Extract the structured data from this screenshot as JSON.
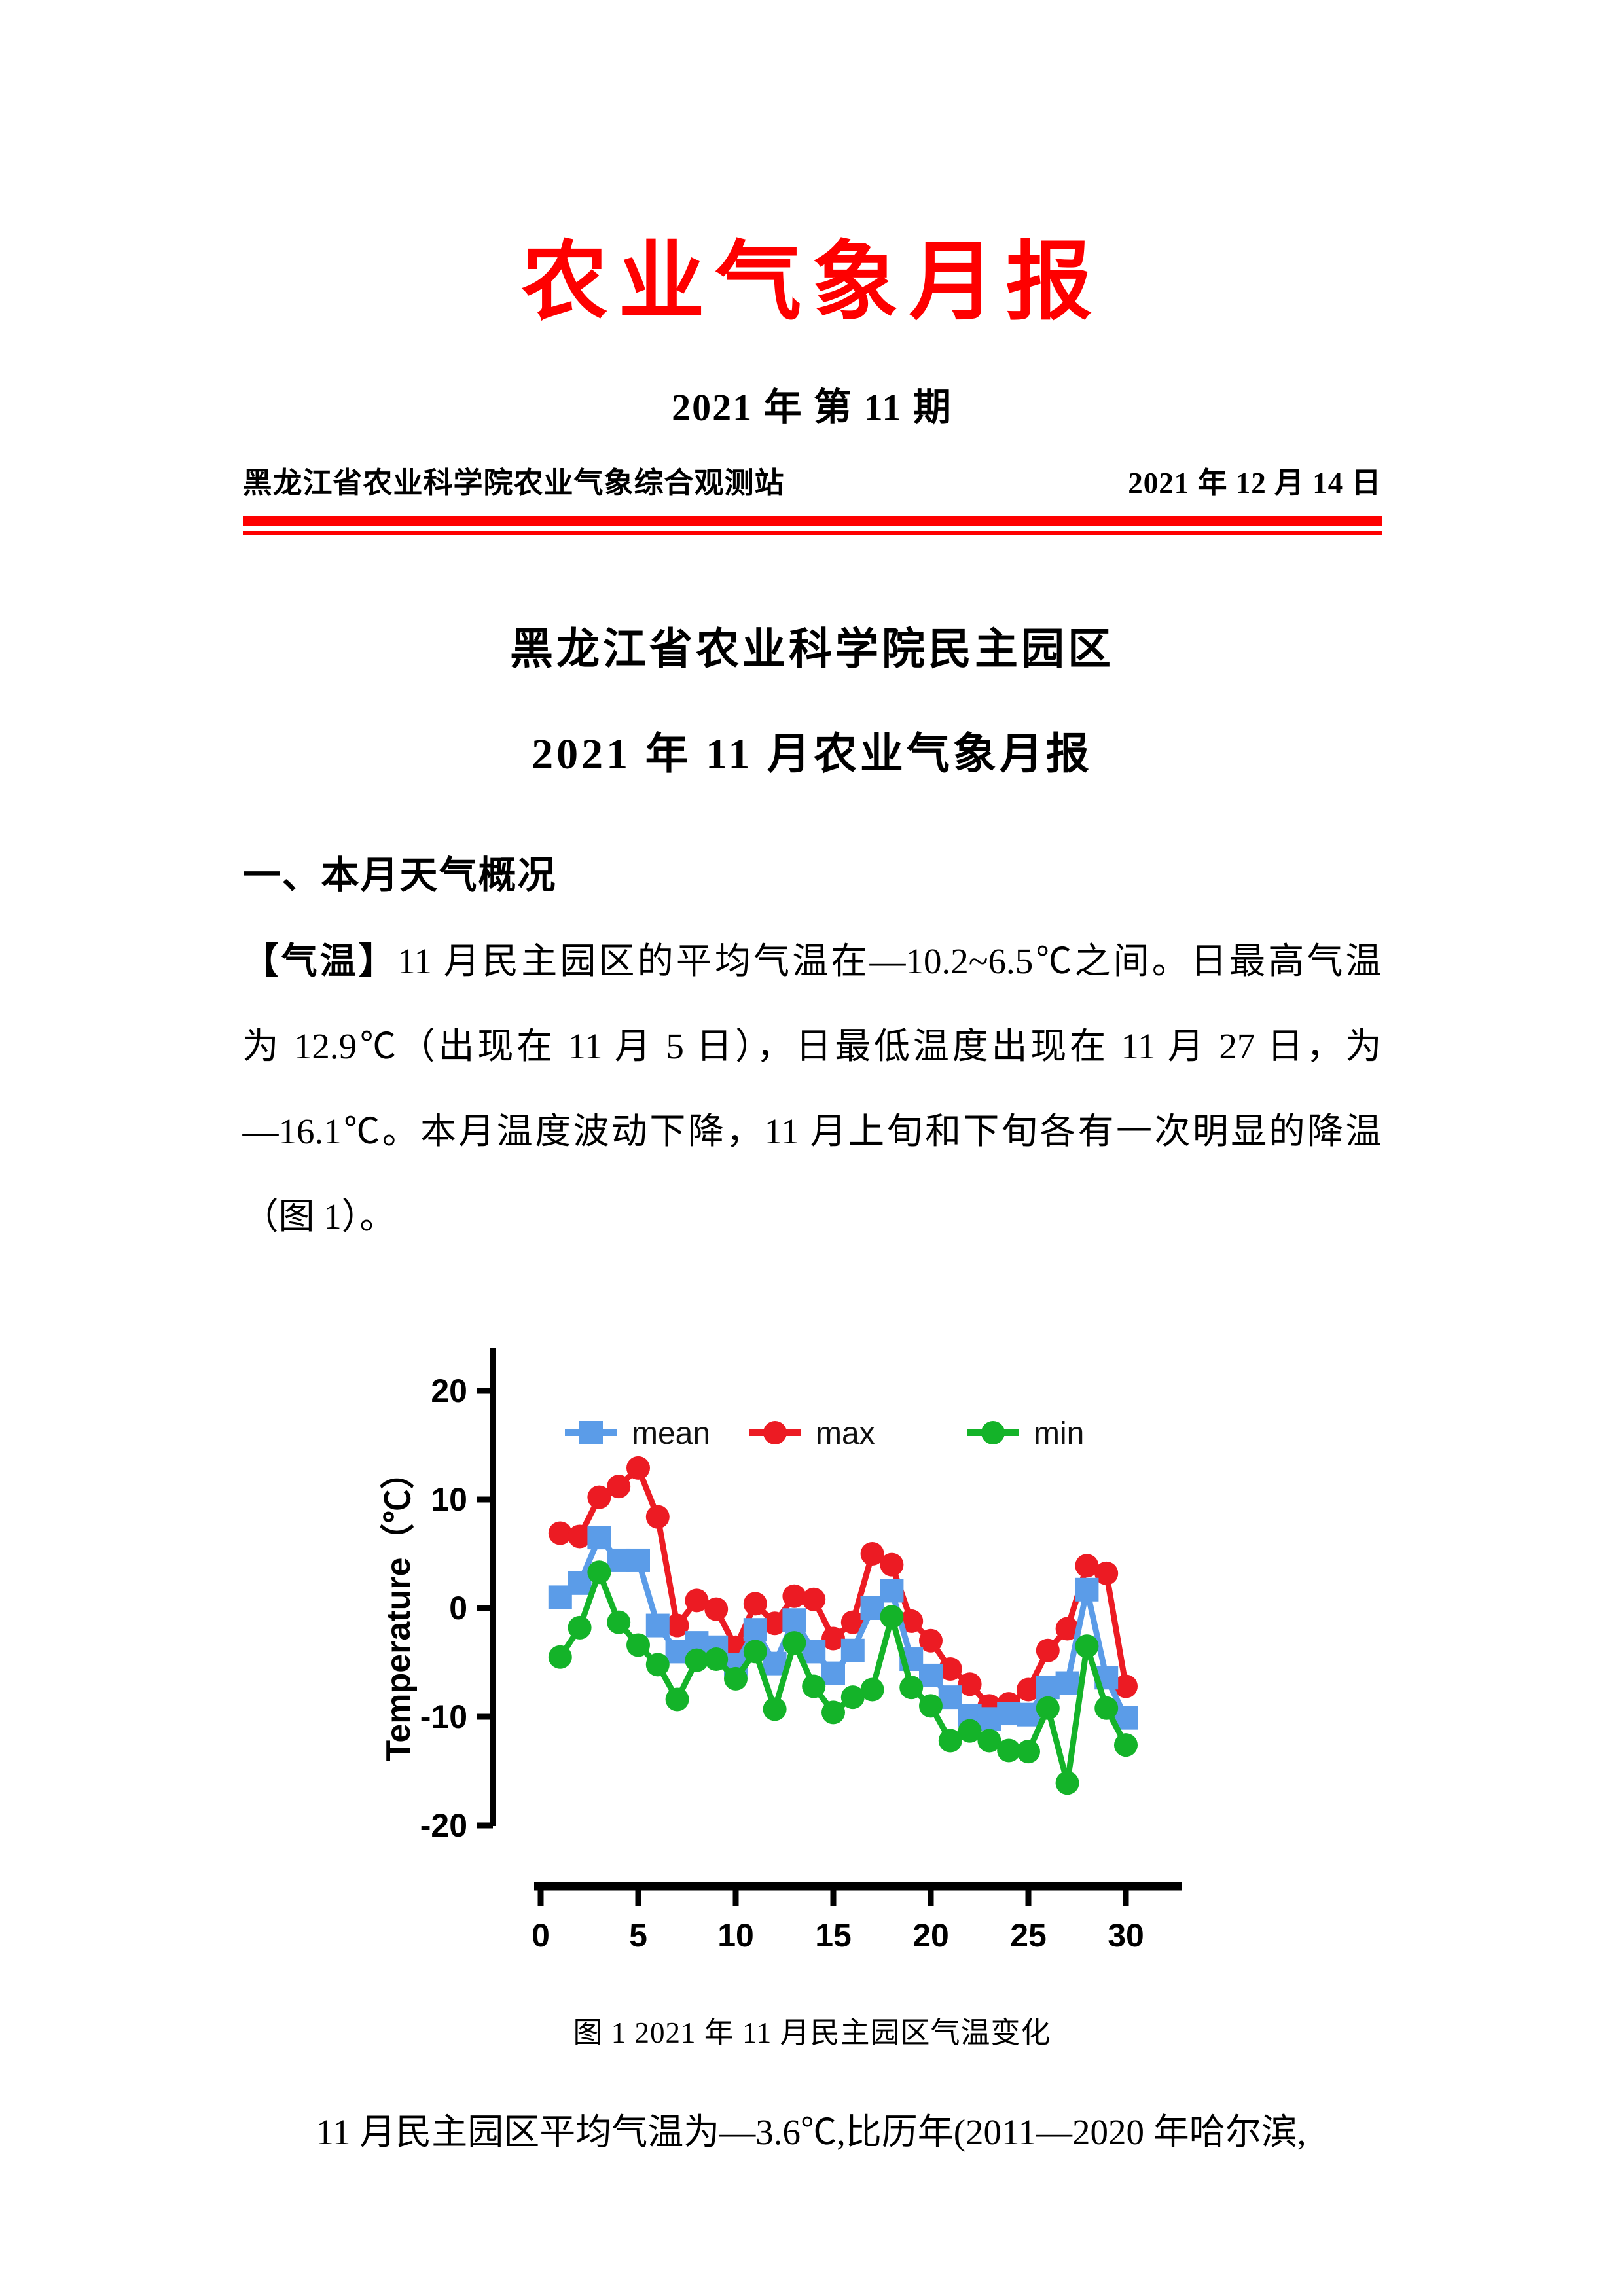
{
  "page": {
    "title": "农业气象月报",
    "issue_line": "2021 年 第 11 期",
    "org_name": "黑龙江省农业科学院农业气象综合观测站",
    "issue_date": "2021 年 12 月 14 日"
  },
  "report": {
    "heading_line1": "黑龙江省农业科学院民主园区",
    "heading_line2": "2021 年 11 月农业气象月报",
    "section1_title": "一、本月天气概况",
    "para_tag": "【气温】",
    "para_line1": "11 月民主园区的平均气温在—10.2~6.5℃之间。日最高气温",
    "para_line2": "为 12.9℃（出现在 11 月 5 日），日最低温度出现在 11 月 27 日，为",
    "para_line3": "—16.1℃。本月温度波动下降，11 月上旬和下旬各有一次明显的降温",
    "para_line4": "（图 1）。",
    "figure_caption": "图 1 2021 年 11 月民主园区气温变化",
    "closing_line": "11 月民主园区平均气温为—3.6℃,比历年(2011—2020 年哈尔滨,"
  },
  "colors": {
    "title_red": "#fe0000",
    "rule_red": "#fe0000",
    "mean_blue": "#5b9ce8",
    "max_red": "#ec1b23",
    "min_green": "#14b329",
    "axis_black": "#000000"
  },
  "chart_data": {
    "type": "line",
    "title": "",
    "xlabel": "",
    "ylabel": "Temperature（℃）",
    "ylim": [
      -20,
      20
    ],
    "yticks": [
      20,
      10,
      0,
      -10,
      -20
    ],
    "xticks": [
      0,
      5,
      10,
      15,
      20,
      25,
      30
    ],
    "legend_position": "top",
    "grid": false,
    "x": [
      1,
      2,
      3,
      4,
      5,
      6,
      7,
      8,
      9,
      10,
      11,
      12,
      13,
      14,
      15,
      16,
      17,
      18,
      19,
      20,
      21,
      22,
      23,
      24,
      25,
      26,
      27,
      28,
      29,
      30
    ],
    "series": [
      {
        "name": "mean",
        "color": "#5b9ce8",
        "marker": "square",
        "values": [
          1.0,
          2.3,
          6.5,
          4.4,
          4.4,
          -1.6,
          -4.0,
          -3.2,
          -3.6,
          -5.2,
          -2.0,
          -5.1,
          -1.1,
          -4.0,
          -6.0,
          -3.9,
          0.0,
          1.6,
          -4.7,
          -6.2,
          -8.2,
          -9.9,
          -10.2,
          -9.7,
          -9.8,
          -7.3,
          -6.9,
          1.7,
          -6.4,
          -10.1
        ]
      },
      {
        "name": "max",
        "color": "#ec1b23",
        "marker": "circle",
        "values": [
          6.9,
          6.6,
          10.2,
          11.2,
          12.9,
          8.4,
          -1.6,
          0.7,
          -0.1,
          -3.6,
          0.4,
          -1.4,
          1.1,
          0.8,
          -2.8,
          -1.3,
          5.0,
          4.0,
          -1.2,
          -3.0,
          -5.6,
          -7.0,
          -9.0,
          -8.8,
          -7.5,
          -3.9,
          -1.9,
          3.9,
          3.2,
          -7.2
        ]
      },
      {
        "name": "min",
        "color": "#14b329",
        "marker": "circle",
        "values": [
          -4.5,
          -1.8,
          3.3,
          -1.3,
          -3.4,
          -5.2,
          -8.4,
          -4.8,
          -4.7,
          -6.5,
          -4.0,
          -9.3,
          -3.2,
          -7.2,
          -9.6,
          -8.2,
          -7.5,
          -0.8,
          -7.3,
          -9.0,
          -12.2,
          -11.3,
          -12.2,
          -13.1,
          -13.2,
          -9.2,
          -16.1,
          -3.5,
          -9.2,
          -12.6
        ]
      }
    ]
  }
}
